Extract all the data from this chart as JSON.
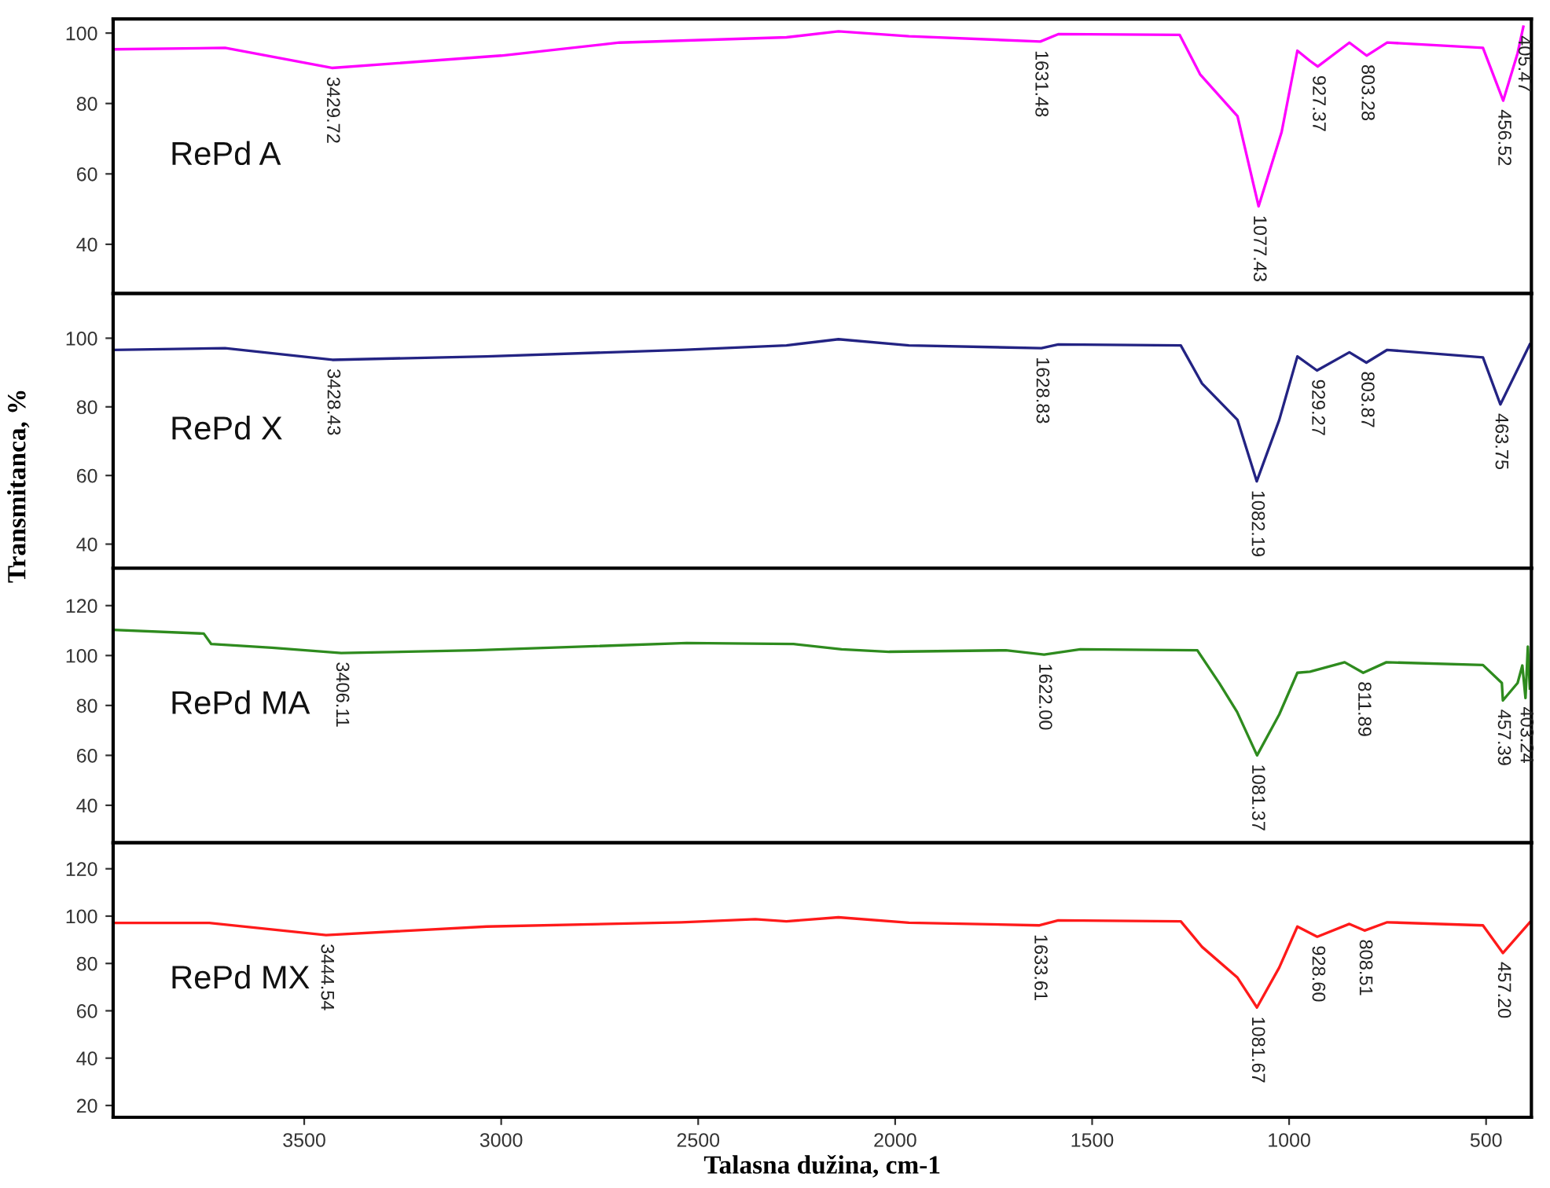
{
  "chart_data": [
    {
      "type": "line",
      "xlim": [
        3985,
        385
      ],
      "ylim": [
        26,
        104
      ],
      "yticks": [
        40,
        60,
        80,
        100
      ],
      "tick_labels": "y",
      "grid": false,
      "series": [
        {
          "name": "RePd A",
          "color": "#ff00ff",
          "x": [
            3984,
            3701,
            3429.72,
            3000,
            2700,
            2276,
            2144,
            1965,
            1631.48,
            1586,
            1278,
            1226,
            1131,
            1077.43,
            1019,
            979,
            947,
            927.37,
            847,
            803.28,
            751,
            508,
            456.52,
            420,
            405.47
          ],
          "values": [
            95.4,
            95.8,
            90.1,
            93.6,
            97.3,
            98.8,
            100.5,
            99.1,
            97.6,
            99.7,
            99.5,
            88.3,
            76.4,
            50.8,
            71.9,
            95,
            92.1,
            90.5,
            97.3,
            93.6,
            97.3,
            95.8,
            80.8,
            94.3,
            101.8
          ]
        }
      ],
      "annotations": [
        {
          "text": "3429.72",
          "x": 3429.72,
          "y": 90.1
        },
        {
          "text": "1631.48",
          "x": 1631.48,
          "y": 97.6
        },
        {
          "text": "1077.43",
          "x": 1077.43,
          "y": 50.8
        },
        {
          "text": "927.37",
          "x": 927.37,
          "y": 90.5
        },
        {
          "text": "803.28",
          "x": 803.28,
          "y": 93.6
        },
        {
          "text": "456.52",
          "x": 456.52,
          "y": 80.8
        },
        {
          "text": "405.47",
          "x": 405.47,
          "y": 101.8
        }
      ]
    },
    {
      "type": "line",
      "xlim": [
        3985,
        385
      ],
      "ylim": [
        33,
        113
      ],
      "yticks": [
        40,
        60,
        80,
        100
      ],
      "tick_labels": "y",
      "grid": false,
      "series": [
        {
          "name": "RePd X",
          "color": "#232383",
          "x": [
            3984,
            3701,
            3428.43,
            3037,
            2543,
            2276,
            2144,
            1965,
            1628.83,
            1586,
            1275,
            1221,
            1131,
            1082.19,
            1025,
            979,
            929.27,
            847,
            803.87,
            751,
            508,
            463.75,
            389
          ],
          "values": [
            96.6,
            97.1,
            93.7,
            94.7,
            96.6,
            97.9,
            99.7,
            97.9,
            97.1,
            98.2,
            97.9,
            86.8,
            76.2,
            58.3,
            76.2,
            94.7,
            90.6,
            95.9,
            92.9,
            96.6,
            94.4,
            80.7,
            98.2
          ]
        }
      ],
      "annotations": [
        {
          "text": "3428.43",
          "x": 3428.43,
          "y": 93.7
        },
        {
          "text": "1628.83",
          "x": 1628.83,
          "y": 97.1
        },
        {
          "text": "1082.19",
          "x": 1082.19,
          "y": 58.3
        },
        {
          "text": "929.27",
          "x": 929.27,
          "y": 90.6
        },
        {
          "text": "803.87",
          "x": 803.87,
          "y": 92.9
        },
        {
          "text": "463.75",
          "x": 463.75,
          "y": 80.7
        }
      ]
    },
    {
      "type": "line",
      "xlim": [
        3985,
        385
      ],
      "ylim": [
        25,
        135
      ],
      "yticks": [
        40,
        60,
        80,
        100,
        120
      ],
      "tick_labels": "y",
      "grid": false,
      "ylabel": "Transmitanca, %",
      "series": [
        {
          "name": "RePd MA",
          "color": "#2e8b1e",
          "x": [
            3984,
            3755,
            3736,
            3582,
            3406.11,
            3067,
            2529,
            2258,
            2136,
            2015,
            1719,
            1622.0,
            1530,
            1233,
            1177,
            1132,
            1081.37,
            1025,
            979,
            947,
            859,
            811.89,
            753,
            508,
            460,
            457.39,
            420,
            408,
            400,
            394,
            389
          ],
          "values": [
            110.3,
            108.8,
            104.6,
            103.1,
            101,
            102.1,
            105,
            104.6,
            102.5,
            101.5,
            102.1,
            100.4,
            102.5,
            102.1,
            88.9,
            77.4,
            60,
            76.4,
            93.1,
            93.5,
            97.3,
            93.1,
            97.3,
            96.2,
            89,
            82,
            89,
            96,
            83,
            103.6,
            86.8
          ]
        }
      ],
      "annotations": [
        {
          "text": "3406.11",
          "x": 3406.11,
          "y": 101
        },
        {
          "text": "1622.00",
          "x": 1622.0,
          "y": 100.4
        },
        {
          "text": "1081.37",
          "x": 1081.37,
          "y": 60
        },
        {
          "text": "811.89",
          "x": 811.89,
          "y": 93.1
        },
        {
          "text": "457.39",
          "x": 457.39,
          "y": 82
        },
        {
          "text": "403.24",
          "x": 400,
          "y": 83
        }
      ]
    },
    {
      "type": "line",
      "xlim": [
        3985,
        385
      ],
      "ylim": [
        15,
        131
      ],
      "yticks": [
        20,
        40,
        60,
        80,
        100,
        120
      ],
      "xticks": [
        3500,
        3000,
        2500,
        2000,
        1500,
        1000,
        500
      ],
      "grid": false,
      "xlabel": "Talasna dužina, cm-1",
      "series": [
        {
          "name": "RePd MX",
          "color": "#ff1a1a",
          "x": [
            3984,
            3741,
            3444.54,
            3037,
            2543,
            2355,
            2276,
            2144,
            1965,
            1633.61,
            1586,
            1275,
            1221,
            1131,
            1081.67,
            1025,
            979,
            928.6,
            847,
            808.51,
            751,
            508,
            457.2,
            389
          ],
          "values": [
            97.1,
            97.1,
            92,
            95.6,
            97.4,
            98.7,
            97.8,
            99.5,
            97.2,
            96.1,
            98.2,
            97.8,
            87,
            74,
            61.4,
            78.3,
            95.6,
            91.3,
            96.7,
            93.9,
            97.4,
            96.1,
            84.4,
            97.4
          ]
        }
      ],
      "annotations": [
        {
          "text": "3444.54",
          "x": 3444.54,
          "y": 92
        },
        {
          "text": "1633.61",
          "x": 1633.61,
          "y": 96.1
        },
        {
          "text": "1081.67",
          "x": 1081.67,
          "y": 61.4
        },
        {
          "text": "928.60",
          "x": 928.6,
          "y": 91.3
        },
        {
          "text": "808.51",
          "x": 808.51,
          "y": 93.9
        },
        {
          "text": "457.20",
          "x": 457.2,
          "y": 84.4
        }
      ]
    }
  ]
}
